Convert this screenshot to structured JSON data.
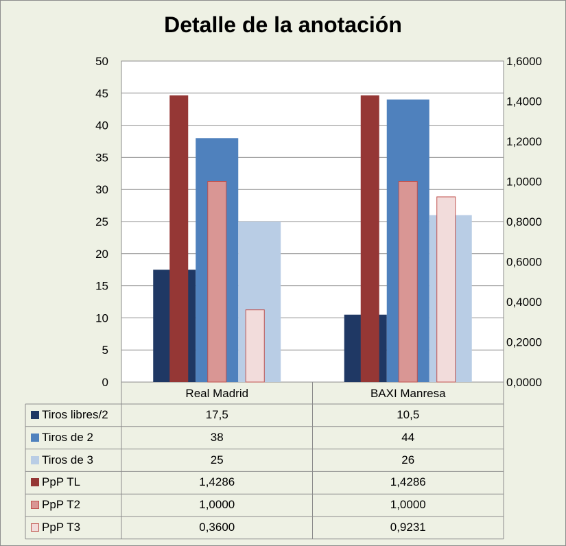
{
  "chart_data": {
    "type": "bar",
    "title": "Detalle de la anotación",
    "categories": [
      "Real Madrid",
      "BAXI Manresa"
    ],
    "y_left": {
      "ylim": [
        0,
        50
      ],
      "ticks": [
        "0",
        "5",
        "10",
        "15",
        "20",
        "25",
        "30",
        "35",
        "40",
        "45",
        "50"
      ]
    },
    "y_right": {
      "ylim": [
        0,
        1.6
      ],
      "ticks": [
        "0,0000",
        "0,2000",
        "0,4000",
        "0,6000",
        "0,8000",
        "1,0000",
        "1,2000",
        "1,4000",
        "1,6000"
      ]
    },
    "grid": true,
    "legend": "data-table",
    "series": [
      {
        "name": "Tiros libres/2",
        "axis": "left",
        "color": "#1f3864",
        "values": [
          17.5,
          10.5
        ],
        "labels": [
          "17,5",
          "10,5"
        ]
      },
      {
        "name": "Tiros de 2",
        "axis": "left",
        "color": "#4f81bd",
        "values": [
          38,
          44
        ],
        "labels": [
          "38",
          "44"
        ]
      },
      {
        "name": "Tiros de 3",
        "axis": "left",
        "color": "#b9cde5",
        "values": [
          25,
          26
        ],
        "labels": [
          "25",
          "26"
        ]
      },
      {
        "name": "PpP TL",
        "axis": "right",
        "color": "#953735",
        "values": [
          1.4286,
          1.4286
        ],
        "labels": [
          "1,4286",
          "1,4286"
        ]
      },
      {
        "name": "PpP T2",
        "axis": "right",
        "color": "#d99694",
        "border": "#c0504d",
        "values": [
          1.0,
          1.0
        ],
        "labels": [
          "1,0000",
          "1,0000"
        ]
      },
      {
        "name": "PpP T3",
        "axis": "right",
        "color": "#f2dcdb",
        "border": "#c0504d",
        "values": [
          0.36,
          0.9231
        ],
        "labels": [
          "0,3600",
          "0,9231"
        ]
      }
    ]
  }
}
